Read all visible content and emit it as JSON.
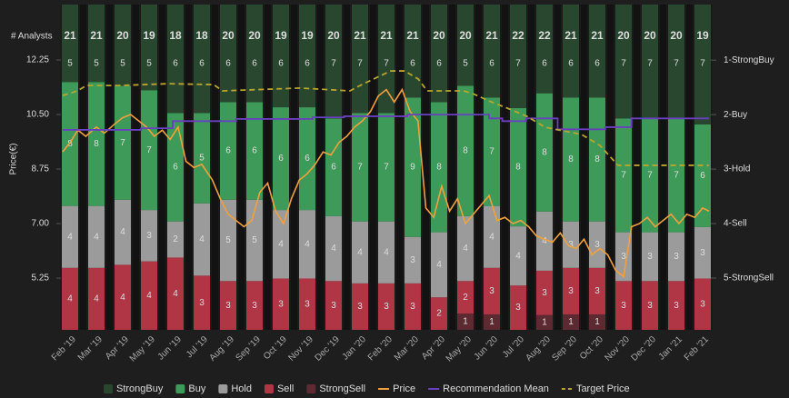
{
  "chart_data": {
    "type": "bar",
    "stacked": true,
    "analysts_label": "# Analysts",
    "analyst_counts": [
      21,
      21,
      20,
      19,
      18,
      18,
      20,
      20,
      19,
      19,
      20,
      21,
      21,
      21,
      20,
      20,
      21,
      22,
      22,
      21,
      21,
      20,
      20,
      20,
      19
    ],
    "y_label": "Price(€)",
    "categories": [
      "Feb '19",
      "Mar '19",
      "Apr '19",
      "May '19",
      "Jun '19",
      "Jul '19",
      "Aug '19",
      "Sep '19",
      "Oct '19",
      "Nov '19",
      "Dec '19",
      "Jan '20",
      "Feb '20",
      "Mar '20",
      "Apr '20",
      "May '20",
      "Jun '20",
      "Jul '20",
      "Aug '20",
      "Sep '20",
      "Oct '20",
      "Nov '20",
      "Dec '20",
      "Jan '21",
      "Feb '21"
    ],
    "ylim": [
      3.59,
      14.03
    ],
    "yticks": [
      12.25,
      {
        "value": 10.5,
        "label": "10.50"
      },
      8.75,
      {
        "value": 7,
        "label": "7.00"
      },
      5.25
    ],
    "y2lim": [
      5.95,
      -0.02
    ],
    "y2ticks": [
      {
        "value": 1,
        "label": "1-StrongBuy"
      },
      {
        "value": 2,
        "label": "2-Buy"
      },
      {
        "value": 3,
        "label": "3-Hold"
      },
      {
        "value": 4,
        "label": "4-Sell"
      },
      {
        "value": 5,
        "label": "5-StrongSell"
      }
    ],
    "series": [
      {
        "name": "StrongSell",
        "type": "bar",
        "color": "#5e2a31",
        "values": [
          0,
          0,
          0,
          0,
          0,
          0,
          0,
          0,
          0,
          0,
          0,
          0,
          0,
          0,
          0,
          1,
          1,
          0,
          1,
          1,
          1,
          0,
          0,
          0,
          0
        ]
      },
      {
        "name": "Sell",
        "type": "bar",
        "color": "#b03646",
        "values": [
          4,
          4,
          4,
          4,
          4,
          3,
          3,
          3,
          3,
          3,
          3,
          3,
          3,
          3,
          2,
          2,
          3,
          3,
          3,
          3,
          3,
          3,
          3,
          3,
          3
        ]
      },
      {
        "name": "Hold",
        "type": "bar",
        "color": "#9b9b9b",
        "values": [
          4,
          4,
          4,
          3,
          2,
          4,
          5,
          5,
          4,
          4,
          4,
          4,
          4,
          3,
          4,
          4,
          4,
          4,
          4,
          3,
          3,
          3,
          3,
          3,
          3
        ]
      },
      {
        "name": "Buy",
        "type": "bar",
        "color": "#3d9a58",
        "values": [
          8,
          8,
          7,
          7,
          6,
          5,
          6,
          6,
          6,
          6,
          6,
          7,
          7,
          9,
          8,
          8,
          7,
          8,
          8,
          8,
          8,
          7,
          7,
          7,
          6
        ]
      },
      {
        "name": "StrongBuy",
        "type": "bar",
        "color": "#29472f",
        "values": [
          5,
          5,
          5,
          5,
          6,
          6,
          6,
          6,
          6,
          6,
          7,
          7,
          7,
          6,
          6,
          5,
          6,
          7,
          6,
          6,
          6,
          7,
          7,
          7,
          7
        ]
      },
      {
        "name": "Price",
        "type": "line",
        "color": "#f2a03d",
        "x": [
          -0.28,
          0,
          0.3,
          0.6,
          1,
          1.3,
          1.7,
          2,
          2.3,
          2.6,
          2.9,
          3.2,
          3.5,
          3.8,
          4.1,
          4.4,
          4.7,
          5,
          5.4,
          5.7,
          6,
          6.3,
          6.6,
          6.9,
          7.2,
          7.5,
          7.8,
          8.1,
          8.4,
          8.7,
          9,
          9.3,
          9.6,
          9.9,
          10.2,
          10.5,
          10.8,
          11.1,
          11.4,
          11.7,
          12,
          12.3,
          12.6,
          12.9,
          13.2,
          13.5,
          13.8,
          14.1,
          14.4,
          14.7,
          15,
          15.3,
          15.6,
          15.9,
          16.2,
          16.5,
          16.8,
          17.1,
          17.4,
          17.7,
          18,
          18.3,
          18.6,
          18.9,
          19.2,
          19.5,
          19.8,
          20.1,
          20.4,
          20.7,
          21,
          21.3,
          21.6,
          21.9,
          22.2,
          22.5,
          22.8,
          23.1,
          23.4,
          23.7,
          24,
          24.24
        ],
        "values": [
          9.3,
          9.6,
          10,
          9.8,
          10.1,
          9.9,
          10.2,
          10.4,
          10.5,
          10.3,
          10.1,
          9.8,
          10,
          9.7,
          10.1,
          9,
          8.8,
          8.9,
          8.4,
          7.8,
          7.3,
          7.1,
          6.9,
          7.1,
          8,
          8.3,
          7.4,
          7,
          7.8,
          8.4,
          8.6,
          8.9,
          9.3,
          9.2,
          9.6,
          9.8,
          10.1,
          10.3,
          10.6,
          11.1,
          11.3,
          10.9,
          11.3,
          10.6,
          10.3,
          7.5,
          7.2,
          8.2,
          7.4,
          7.8,
          7,
          7.3,
          7.6,
          7.9,
          7.1,
          7.2,
          7,
          7.1,
          6.9,
          6.6,
          6.5,
          6.4,
          6.7,
          6.3,
          6.2,
          6.5,
          6,
          6.2,
          6,
          5.5,
          5.3,
          6.9,
          7,
          7.2,
          6.9,
          7.1,
          7.3,
          7,
          7.3,
          7.2,
          7.5,
          7.4
        ]
      },
      {
        "name": "Recommendation Mean",
        "type": "line",
        "axis": "y2",
        "step": true,
        "color": "#6a3fc0",
        "x": [
          -0.28,
          2.7,
          3.9,
          6.3,
          9.2,
          10.4,
          12.8,
          15.9,
          16.4,
          17.3,
          18.5,
          20.3,
          21.3,
          24.24
        ],
        "values": [
          2.28,
          2.25,
          2.12,
          2.08,
          2.05,
          2.03,
          2,
          2.07,
          2.12,
          2.07,
          2.27,
          2.23,
          2.07,
          2.07
        ]
      },
      {
        "name": "Target Price",
        "type": "line",
        "dashed": true,
        "color": "#b9a52e",
        "x": [
          -0.28,
          0.28,
          0.62,
          1.83,
          3.72,
          5.45,
          5.79,
          8.72,
          10.62,
          11.14,
          12.17,
          12.69,
          13.21,
          13.55,
          14.93,
          15.28,
          15.97,
          16.66,
          17.34,
          18.03,
          19.41,
          20.1,
          20.79,
          24.24
        ],
        "values": [
          11.11,
          11.26,
          11.43,
          11.43,
          11.49,
          11.46,
          11.26,
          11.35,
          11.26,
          11.49,
          11.9,
          11.9,
          11.64,
          11.26,
          11.26,
          11.17,
          10.91,
          10.68,
          10.44,
          10.09,
          9.86,
          9.51,
          8.87,
          8.87
        ]
      }
    ]
  }
}
